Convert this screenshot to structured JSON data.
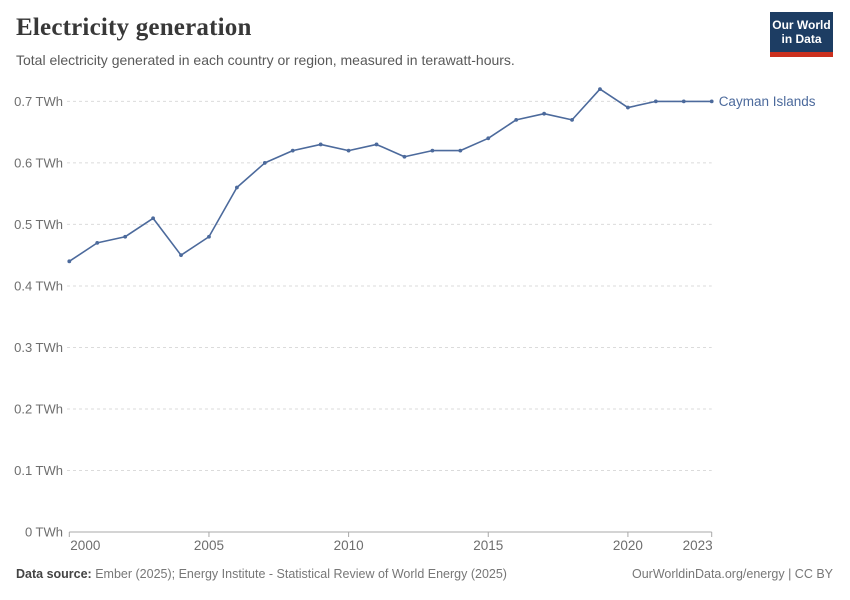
{
  "header": {
    "title": "Electricity generation",
    "subtitle": "Total electricity generated in each country or region, measured in terawatt-hours.",
    "logo": {
      "line1": "Our World",
      "line2": "in Data"
    }
  },
  "chart_data": {
    "type": "line",
    "title": "Electricity generation",
    "unit": "TWh",
    "x": [
      2000,
      2001,
      2002,
      2003,
      2004,
      2005,
      2006,
      2007,
      2008,
      2009,
      2010,
      2011,
      2012,
      2013,
      2014,
      2015,
      2016,
      2017,
      2018,
      2019,
      2020,
      2021,
      2022,
      2023
    ],
    "series": [
      {
        "name": "Cayman Islands",
        "values": [
          0.44,
          0.47,
          0.48,
          0.51,
          0.45,
          0.48,
          0.56,
          0.6,
          0.62,
          0.63,
          0.62,
          0.63,
          0.61,
          0.62,
          0.62,
          0.64,
          0.67,
          0.68,
          0.67,
          0.72,
          0.69,
          0.7,
          0.7,
          0.7
        ]
      }
    ],
    "ylim": [
      0,
      0.7
    ],
    "yticks": [
      {
        "value": 0,
        "label": "0 TWh"
      },
      {
        "value": 0.1,
        "label": "0.1 TWh"
      },
      {
        "value": 0.2,
        "label": "0.2 TWh"
      },
      {
        "value": 0.3,
        "label": "0.3 TWh"
      },
      {
        "value": 0.4,
        "label": "0.4 TWh"
      },
      {
        "value": 0.5,
        "label": "0.5 TWh"
      },
      {
        "value": 0.6,
        "label": "0.6 TWh"
      },
      {
        "value": 0.7,
        "label": "0.7 TWh"
      }
    ],
    "xticks": [
      {
        "value": 2000,
        "label": "2000"
      },
      {
        "value": 2005,
        "label": "2005"
      },
      {
        "value": 2010,
        "label": "2010"
      },
      {
        "value": 2015,
        "label": "2015"
      },
      {
        "value": 2020,
        "label": "2020"
      },
      {
        "value": 2023,
        "label": "2023"
      }
    ],
    "grid": "horizontal-dashed",
    "legend_position": "end-of-line"
  },
  "footer": {
    "datasource_label": "Data source:",
    "datasource_text": " Ember (2025); Energy Institute - Statistical Review of World Energy (2025)",
    "right_text": "OurWorldinData.org/energy | CC BY"
  },
  "colors": {
    "line": "#4c6a9c",
    "series_label": "#4c6a9c",
    "gridline": "#dbdbdb",
    "axis": "#a8a8a8",
    "tick_label": "#6e6e6e",
    "title": "#383838",
    "subtitle": "#595959",
    "logo_navy": "#1d3d63",
    "logo_red": "#cb301e"
  }
}
